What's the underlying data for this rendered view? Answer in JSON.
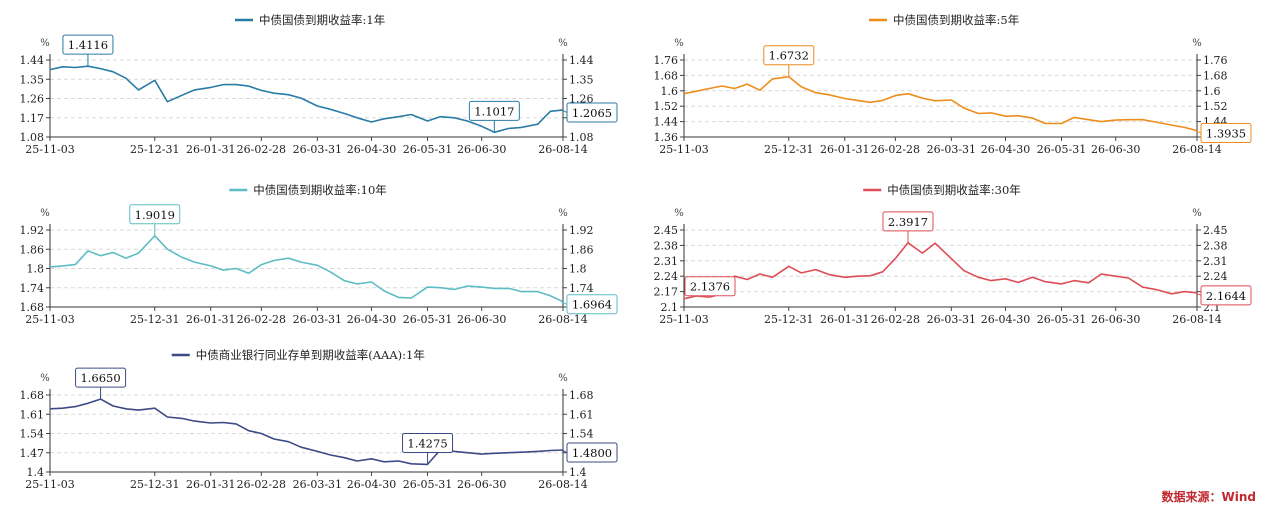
{
  "chart_data": [
    {
      "type": "line",
      "title": "中债国债到期收益率:1年",
      "color": "#2a7ba6",
      "unit_left": "%",
      "unit_right": "%",
      "yticks": [
        "1.44",
        "1.35",
        "1.26",
        "1.17",
        "1.08"
      ],
      "ylim": [
        1.08,
        1.44
      ],
      "xticks": [
        "25-11-03",
        "25-12-31",
        "26-01-31",
        "26-02-28",
        "26-03-31",
        "26-04-30",
        "26-05-31",
        "26-06-30",
        "26-08-14"
      ],
      "grid": true,
      "series": [
        {
          "name": "中债国债到期收益率:1年",
          "x": [
            "25-11-03",
            "25-11-10",
            "25-11-17",
            "25-11-24",
            "25-12-01",
            "25-12-08",
            "25-12-15",
            "25-12-22",
            "25-12-31",
            "26-01-07",
            "26-01-15",
            "26-01-22",
            "26-01-31",
            "26-02-07",
            "26-02-14",
            "26-02-21",
            "26-02-28",
            "26-03-07",
            "26-03-15",
            "26-03-22",
            "26-03-31",
            "26-04-07",
            "26-04-15",
            "26-04-22",
            "26-04-30",
            "26-05-07",
            "26-05-15",
            "26-05-22",
            "26-05-31",
            "26-06-07",
            "26-06-15",
            "26-06-22",
            "26-06-30",
            "26-07-07",
            "26-07-15",
            "26-07-22",
            "26-07-31",
            "26-08-07",
            "26-08-14"
          ],
          "values": [
            1.395,
            1.408,
            1.405,
            1.411,
            1.4,
            1.385,
            1.355,
            1.3,
            1.345,
            1.245,
            1.275,
            1.3,
            1.312,
            1.325,
            1.325,
            1.318,
            1.298,
            1.285,
            1.278,
            1.262,
            1.225,
            1.21,
            1.19,
            1.17,
            1.15,
            1.165,
            1.175,
            1.185,
            1.155,
            1.175,
            1.17,
            1.155,
            1.13,
            1.102,
            1.12,
            1.125,
            1.14,
            1.2,
            1.2065
          ]
        }
      ],
      "callouts": [
        {
          "label": "1.4116",
          "x": "25-11-24",
          "y": 1.4116
        },
        {
          "label": "1.1017",
          "x": "26-07-07",
          "y": 1.1017
        },
        {
          "label": "1.2065",
          "x": "26-08-14",
          "y": 1.2065
        }
      ]
    },
    {
      "type": "line",
      "title": "中债国债到期收益率:5年",
      "color": "#ee8c1c",
      "unit_left": "%",
      "unit_right": "%",
      "yticks": [
        "1.76",
        "1.68",
        "1.6",
        "1.52",
        "1.44",
        "1.36"
      ],
      "ylim": [
        1.36,
        1.76
      ],
      "xticks": [
        "25-11-03",
        "25-12-31",
        "26-01-31",
        "26-02-28",
        "26-03-31",
        "26-04-30",
        "26-05-31",
        "26-06-30",
        "26-08-14"
      ],
      "grid": true,
      "series": [
        {
          "name": "中债国债到期收益率:5年",
          "x": [
            "25-11-03",
            "25-11-10",
            "25-11-17",
            "25-11-24",
            "25-12-01",
            "25-12-08",
            "25-12-15",
            "25-12-22",
            "25-12-31",
            "26-01-07",
            "26-01-15",
            "26-01-22",
            "26-01-31",
            "26-02-07",
            "26-02-14",
            "26-02-21",
            "26-02-28",
            "26-03-07",
            "26-03-15",
            "26-03-22",
            "26-03-31",
            "26-04-07",
            "26-04-15",
            "26-04-22",
            "26-04-30",
            "26-05-07",
            "26-05-15",
            "26-05-22",
            "26-05-31",
            "26-06-07",
            "26-06-15",
            "26-06-22",
            "26-06-30",
            "26-07-07",
            "26-07-15",
            "26-07-22",
            "26-07-31",
            "26-08-07",
            "26-08-14"
          ],
          "values": [
            1.585,
            1.598,
            1.612,
            1.625,
            1.612,
            1.635,
            1.603,
            1.662,
            1.6732,
            1.62,
            1.59,
            1.58,
            1.56,
            1.55,
            1.54,
            1.55,
            1.575,
            1.585,
            1.562,
            1.548,
            1.552,
            1.51,
            1.482,
            1.485,
            1.468,
            1.47,
            1.458,
            1.43,
            1.43,
            1.462,
            1.45,
            1.44,
            1.448,
            1.45,
            1.45,
            1.438,
            1.422,
            1.41,
            1.3935
          ]
        }
      ],
      "callouts": [
        {
          "label": "1.6732",
          "x": "25-12-31",
          "y": 1.6732
        },
        {
          "label": "1.3935",
          "x": "26-08-14",
          "y": 1.3935
        }
      ]
    },
    {
      "type": "line",
      "title": "中债国债到期收益率:10年",
      "color": "#5dbdc4",
      "unit_left": "%",
      "unit_right": "%",
      "yticks": [
        "1.92",
        "1.86",
        "1.8",
        "1.74",
        "1.68"
      ],
      "ylim": [
        1.68,
        1.92
      ],
      "xticks": [
        "25-11-03",
        "25-12-31",
        "26-01-31",
        "26-02-28",
        "26-03-31",
        "26-04-30",
        "26-05-31",
        "26-06-30",
        "26-08-14"
      ],
      "grid": true,
      "series": [
        {
          "name": "中债国债到期收益率:10年",
          "x": [
            "25-11-03",
            "25-11-10",
            "25-11-17",
            "25-11-24",
            "25-12-01",
            "25-12-08",
            "25-12-15",
            "25-12-22",
            "25-12-31",
            "26-01-07",
            "26-01-15",
            "26-01-22",
            "26-01-31",
            "26-02-07",
            "26-02-14",
            "26-02-21",
            "26-02-28",
            "26-03-07",
            "26-03-15",
            "26-03-22",
            "26-03-31",
            "26-04-07",
            "26-04-15",
            "26-04-22",
            "26-04-30",
            "26-05-07",
            "26-05-15",
            "26-05-22",
            "26-05-31",
            "26-06-07",
            "26-06-15",
            "26-06-22",
            "26-06-30",
            "26-07-07",
            "26-07-15",
            "26-07-22",
            "26-07-31",
            "26-08-07",
            "26-08-14"
          ],
          "values": [
            1.805,
            1.808,
            1.812,
            1.855,
            1.84,
            1.85,
            1.832,
            1.848,
            1.9019,
            1.86,
            1.835,
            1.82,
            1.808,
            1.795,
            1.8,
            1.785,
            1.812,
            1.825,
            1.832,
            1.82,
            1.81,
            1.79,
            1.762,
            1.752,
            1.758,
            1.73,
            1.71,
            1.708,
            1.742,
            1.74,
            1.735,
            1.745,
            1.742,
            1.738,
            1.738,
            1.728,
            1.728,
            1.715,
            1.6964
          ]
        }
      ],
      "callouts": [
        {
          "label": "1.9019",
          "x": "25-12-31",
          "y": 1.9019
        },
        {
          "label": "1.6964",
          "x": "26-08-14",
          "y": 1.6964
        }
      ]
    },
    {
      "type": "line",
      "title": "中债国债到期收益率:30年",
      "color": "#de4d55",
      "unit_left": "%",
      "unit_right": "%",
      "yticks": [
        "2.45",
        "2.38",
        "2.31",
        "2.24",
        "2.17",
        "2.1"
      ],
      "ylim": [
        2.1,
        2.45
      ],
      "xticks": [
        "25-11-03",
        "25-12-31",
        "26-01-31",
        "26-02-28",
        "26-03-31",
        "26-04-30",
        "26-05-31",
        "26-06-30",
        "26-08-14"
      ],
      "grid": true,
      "series": [
        {
          "name": "中债国债到期收益率:30年",
          "x": [
            "25-11-03",
            "25-11-10",
            "25-11-17",
            "25-11-24",
            "25-12-01",
            "25-12-08",
            "25-12-15",
            "25-12-22",
            "25-12-31",
            "26-01-07",
            "26-01-15",
            "26-01-22",
            "26-01-31",
            "26-02-07",
            "26-02-14",
            "26-02-21",
            "26-02-28",
            "26-03-07",
            "26-03-15",
            "26-03-22",
            "26-03-31",
            "26-04-07",
            "26-04-15",
            "26-04-22",
            "26-04-30",
            "26-05-07",
            "26-05-15",
            "26-05-22",
            "26-05-31",
            "26-06-07",
            "26-06-15",
            "26-06-22",
            "26-06-30",
            "26-07-07",
            "26-07-15",
            "26-07-22",
            "26-07-31",
            "26-08-07",
            "26-08-14"
          ],
          "values": [
            2.1376,
            2.15,
            2.145,
            2.16,
            2.24,
            2.225,
            2.25,
            2.235,
            2.285,
            2.255,
            2.27,
            2.248,
            2.235,
            2.24,
            2.242,
            2.26,
            2.32,
            2.3917,
            2.345,
            2.39,
            2.32,
            2.265,
            2.235,
            2.22,
            2.228,
            2.212,
            2.235,
            2.215,
            2.205,
            2.22,
            2.21,
            2.25,
            2.24,
            2.232,
            2.19,
            2.18,
            2.16,
            2.17,
            2.1644
          ]
        }
      ],
      "callouts": [
        {
          "label": "2.1376",
          "x": "25-11-03",
          "y": 2.1376
        },
        {
          "label": "2.3917",
          "x": "26-03-07",
          "y": 2.3917
        },
        {
          "label": "2.1644",
          "x": "26-08-14",
          "y": 2.1644
        }
      ]
    },
    {
      "type": "line",
      "title": "中债商业银行同业存单到期收益率(AAA):1年",
      "color": "#3d4a86",
      "unit_left": "%",
      "unit_right": "%",
      "yticks": [
        "1.68",
        "1.61",
        "1.54",
        "1.47",
        "1.4"
      ],
      "ylim": [
        1.4,
        1.68
      ],
      "xticks": [
        "25-11-03",
        "25-12-31",
        "26-01-31",
        "26-02-28",
        "26-03-31",
        "26-04-30",
        "26-05-31",
        "26-06-30",
        "26-08-14"
      ],
      "grid": true,
      "series": [
        {
          "name": "中债商业银行同业存单到期收益率(AAA):1年",
          "x": [
            "25-11-03",
            "25-11-10",
            "25-11-17",
            "25-11-24",
            "25-12-01",
            "25-12-08",
            "25-12-15",
            "25-12-22",
            "25-12-31",
            "26-01-07",
            "26-01-15",
            "26-01-22",
            "26-01-31",
            "26-02-07",
            "26-02-14",
            "26-02-21",
            "26-02-28",
            "26-03-07",
            "26-03-15",
            "26-03-22",
            "26-03-31",
            "26-04-07",
            "26-04-15",
            "26-04-22",
            "26-04-30",
            "26-05-07",
            "26-05-15",
            "26-05-22",
            "26-05-31",
            "26-06-07",
            "26-06-15",
            "26-06-22",
            "26-06-30",
            "26-07-07",
            "26-07-15",
            "26-07-22",
            "26-07-31",
            "26-08-07",
            "26-08-14"
          ],
          "values": [
            1.63,
            1.632,
            1.638,
            1.65,
            1.665,
            1.64,
            1.63,
            1.625,
            1.632,
            1.6,
            1.595,
            1.585,
            1.578,
            1.58,
            1.575,
            1.55,
            1.54,
            1.52,
            1.51,
            1.49,
            1.475,
            1.462,
            1.452,
            1.44,
            1.448,
            1.437,
            1.44,
            1.43,
            1.4275,
            1.48,
            1.475,
            1.47,
            1.465,
            1.468,
            1.47,
            1.472,
            1.475,
            1.478,
            1.48
          ]
        }
      ],
      "callouts": [
        {
          "label": "1.6650",
          "x": "25-12-01",
          "y": 1.665
        },
        {
          "label": "1.4275",
          "x": "26-05-31",
          "y": 1.4275
        },
        {
          "label": "1.4800",
          "x": "26-08-14",
          "y": 1.48
        }
      ]
    }
  ],
  "source": "数据来源：Wind"
}
